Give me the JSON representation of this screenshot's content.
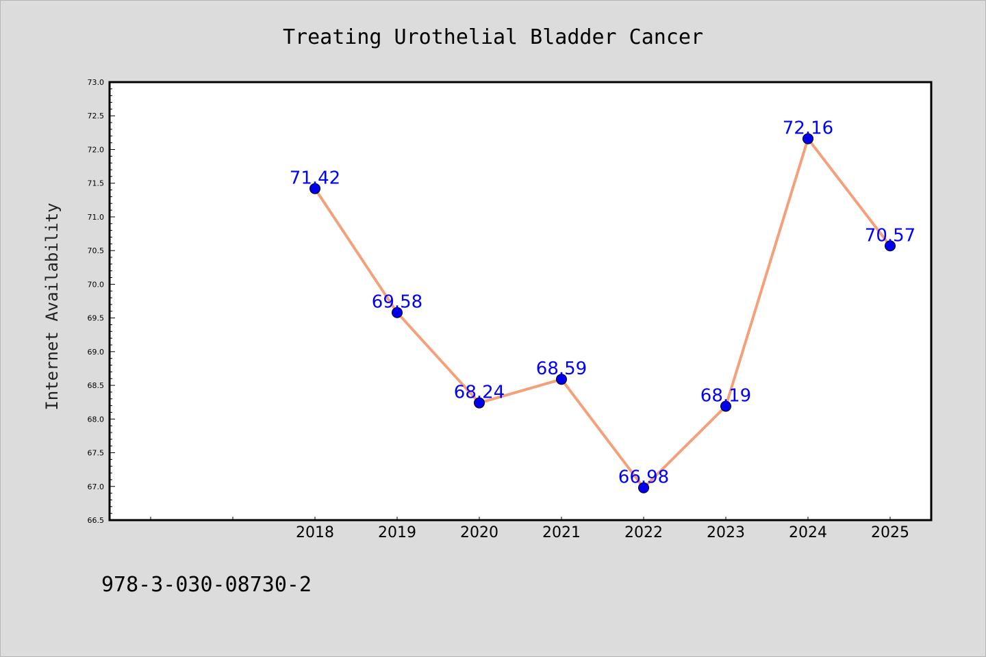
{
  "footer_text": "978-3-030-08730-2",
  "chart_data": {
    "type": "line",
    "title": "Treating Urothelial Bladder Cancer",
    "xlabel": "",
    "ylabel": "Internet Availability",
    "categories": [
      "",
      "",
      "2018",
      "2019",
      "2020",
      "2021",
      "2022",
      "2023",
      "2024",
      "2025"
    ],
    "series": [
      {
        "values": [
          null,
          null,
          71.42,
          69.58,
          68.24,
          68.59,
          66.98,
          68.19,
          72.16,
          70.57
        ],
        "labels": [
          "",
          "",
          "71.42",
          "69.58",
          "68.24",
          "68.59",
          "66.98",
          "68.19",
          "72.16",
          "70.57"
        ],
        "line_color": "#f4a07a",
        "marker_color": "#0000ee"
      }
    ],
    "ylim": [
      66.5,
      73.0
    ],
    "yticks": [
      "66.5",
      "67.0",
      "67.5",
      "68.0",
      "68.5",
      "69.0",
      "69.5",
      "70.0",
      "70.5",
      "71.0",
      "71.5",
      "72.0",
      "72.5",
      "73.0"
    ],
    "grid": false,
    "label_color": "#0000ff"
  }
}
